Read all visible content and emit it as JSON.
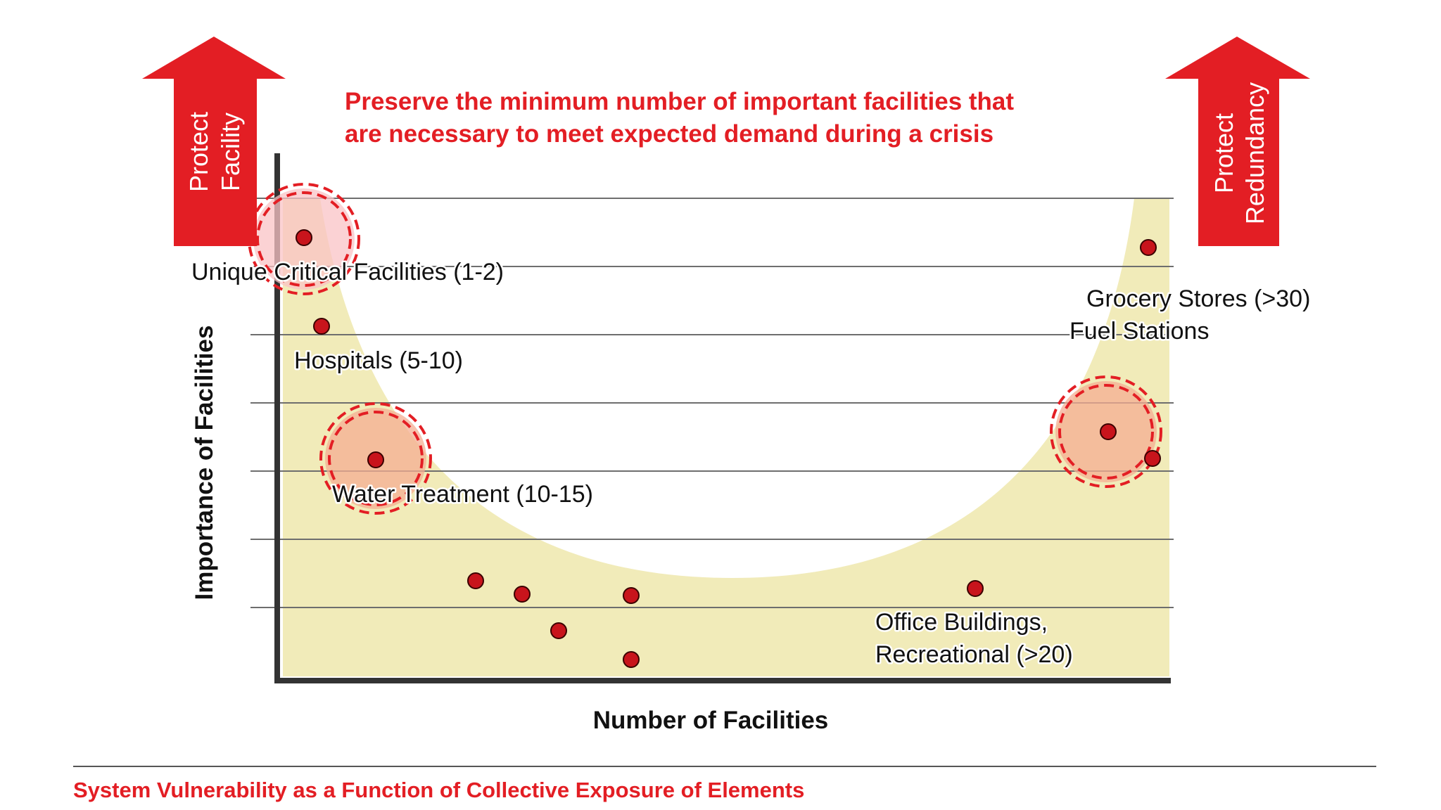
{
  "headline_lines": [
    "Preserve the minimum number of important facilities that",
    "are necessary to meet expected demand during a crisis"
  ],
  "left_arrow_lines": [
    "Protect",
    "Facility"
  ],
  "right_arrow_lines": [
    "Protect",
    "Redundancy"
  ],
  "axis": {
    "y_label": "Importance of Facilities",
    "x_label": "Number of Facilities"
  },
  "category_labels": {
    "unique_critical": "Unique Critical Facilities (1-2)",
    "hospitals": "Hospitals (5-10)",
    "water_treatment": "Water Treatment (10-15)",
    "grocery_stores": "Grocery Stores (>30)",
    "fuel_stations": "Fuel Stations",
    "office_line1": "Office Buildings,",
    "office_line2": "Recreational (>20)"
  },
  "footer_caption": "System Vulnerability as a Function of Collective Exposure of Elements",
  "colors": {
    "accent_red": "#e31e24",
    "curve_fill": "#f1ebb9",
    "dot_fill": "#c8141c",
    "highlight_fill": "#f6b7a9",
    "gridline": "#6e6e6e",
    "axis": "#333333"
  }
}
